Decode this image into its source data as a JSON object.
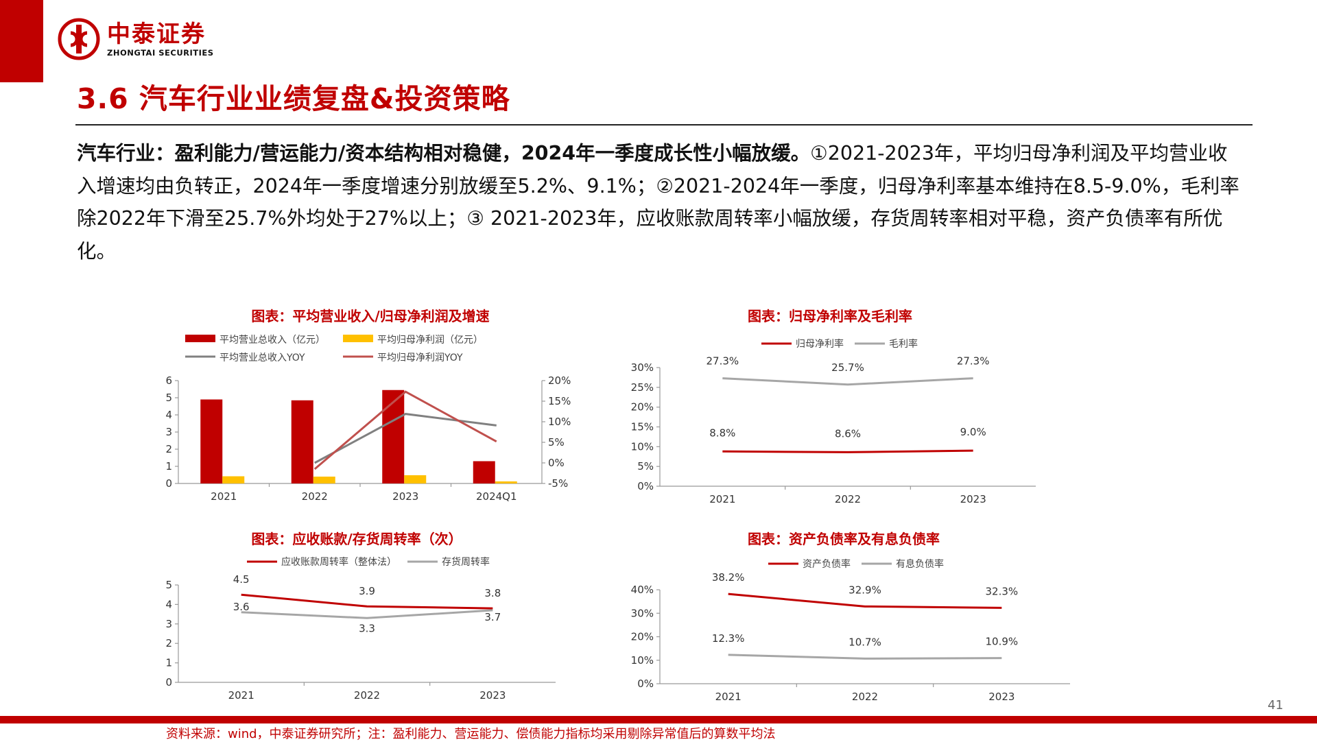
{
  "brand": {
    "name_cn": "中泰证券",
    "name_en": "ZHONGTAI SECURITIES",
    "color": "#c00000"
  },
  "slide": {
    "title": "3.6 汽车行业业绩复盘&投资策略",
    "paragraph_lead": "汽车行业：盈利能力/营运能力/资本结构相对稳健，2024年一季度成长性小幅放缓。",
    "paragraph_rest": "①2021-2023年，平均归母净利润及平均营业收入增速均由负转正，2024年一季度增速分别放缓至5.2%、9.1%；②2021-2024年一季度，归母净利率基本维持在8.5-9.0%，毛利率除2022年下滑至25.7%外均处于27%以上；③ 2021-2023年，应收账款周转率小幅放缓，存货周转率相对平稳，资产负债率有所优化。",
    "source": "资料来源：wind，中泰证券研究所；注：盈利能力、营运能力、偿债能力指标均采用剔除异常值后的算数平均法",
    "page_number": "41"
  },
  "chart_data": [
    {
      "id": "revenue_profit",
      "type": "bar",
      "title": "图表：平均营业收入/归母净利润及增速",
      "categories": [
        "2021",
        "2022",
        "2023",
        "2024Q1"
      ],
      "left_ylim": [
        0,
        6
      ],
      "left_ticks": [
        "0",
        "1",
        "2",
        "3",
        "4",
        "5",
        "6"
      ],
      "right_ylim": [
        -5,
        20
      ],
      "right_ticks": [
        "-5%",
        "0%",
        "5%",
        "10%",
        "15%",
        "20%"
      ],
      "legend": [
        "平均营业总收入（亿元）",
        "平均归母净利润（亿元）",
        "平均营业总收入YOY",
        "平均归母净利润YOY"
      ],
      "series": [
        {
          "name": "平均营业总收入（亿元）",
          "kind": "bar",
          "axis": "left",
          "color": "#c00000",
          "values": [
            4.9,
            4.85,
            5.45,
            1.3
          ]
        },
        {
          "name": "平均归母净利润（亿元）",
          "kind": "bar",
          "axis": "left",
          "color": "#ffc000",
          "values": [
            0.42,
            0.4,
            0.48,
            0.12
          ]
        },
        {
          "name": "平均营业总收入YOY",
          "kind": "line",
          "axis": "right",
          "color": "#808080",
          "values": [
            null,
            0,
            11.9,
            9.1
          ]
        },
        {
          "name": "平均归母净利润YOY",
          "kind": "line",
          "axis": "right",
          "color": "#c0504d",
          "values": [
            null,
            -1.5,
            17.3,
            5.2
          ]
        }
      ]
    },
    {
      "id": "margins",
      "type": "line",
      "title": "图表：归母净利率及毛利率",
      "categories": [
        "2021",
        "2022",
        "2023"
      ],
      "ylim": [
        0,
        30
      ],
      "ticks": [
        "0%",
        "5%",
        "10%",
        "15%",
        "20%",
        "25%",
        "30%"
      ],
      "legend": [
        "归母净利率",
        "毛利率"
      ],
      "series": [
        {
          "name": "归母净利率",
          "color": "#c00000",
          "values": [
            8.8,
            8.6,
            9.0
          ],
          "labels": [
            "8.8%",
            "8.6%",
            "9.0%"
          ]
        },
        {
          "name": "毛利率",
          "color": "#a6a6a6",
          "values": [
            27.3,
            25.7,
            27.3
          ],
          "labels": [
            "27.3%",
            "25.7%",
            "27.3%"
          ]
        }
      ]
    },
    {
      "id": "turnover",
      "type": "line",
      "title": "图表：应收账款/存货周转率（次）",
      "categories": [
        "2021",
        "2022",
        "2023"
      ],
      "ylim": [
        0,
        5
      ],
      "ticks": [
        "0",
        "1",
        "2",
        "3",
        "4",
        "5"
      ],
      "legend": [
        "应收账款周转率（整体法）",
        "存货周转率"
      ],
      "series": [
        {
          "name": "应收账款周转率（整体法）",
          "color": "#c00000",
          "values": [
            4.5,
            3.9,
            3.8
          ],
          "labels": [
            "4.5",
            "3.9",
            "3.8"
          ]
        },
        {
          "name": "存货周转率",
          "color": "#a6a6a6",
          "values": [
            3.6,
            3.3,
            3.7
          ],
          "labels": [
            "3.6",
            "3.3",
            "3.7"
          ]
        }
      ]
    },
    {
      "id": "leverage",
      "type": "line",
      "title": "图表：资产负债率及有息负债率",
      "categories": [
        "2021",
        "2022",
        "2023"
      ],
      "ylim": [
        0,
        40
      ],
      "ticks": [
        "0%",
        "10%",
        "20%",
        "30%",
        "40%"
      ],
      "legend": [
        "资产负债率",
        "有息负债率"
      ],
      "series": [
        {
          "name": "资产负债率",
          "color": "#c00000",
          "values": [
            38.2,
            32.9,
            32.3
          ],
          "labels": [
            "38.2%",
            "32.9%",
            "32.3%"
          ]
        },
        {
          "name": "有息负债率",
          "color": "#a6a6a6",
          "values": [
            12.3,
            10.7,
            10.9
          ],
          "labels": [
            "12.3%",
            "10.7%",
            "10.9%"
          ]
        }
      ]
    }
  ]
}
